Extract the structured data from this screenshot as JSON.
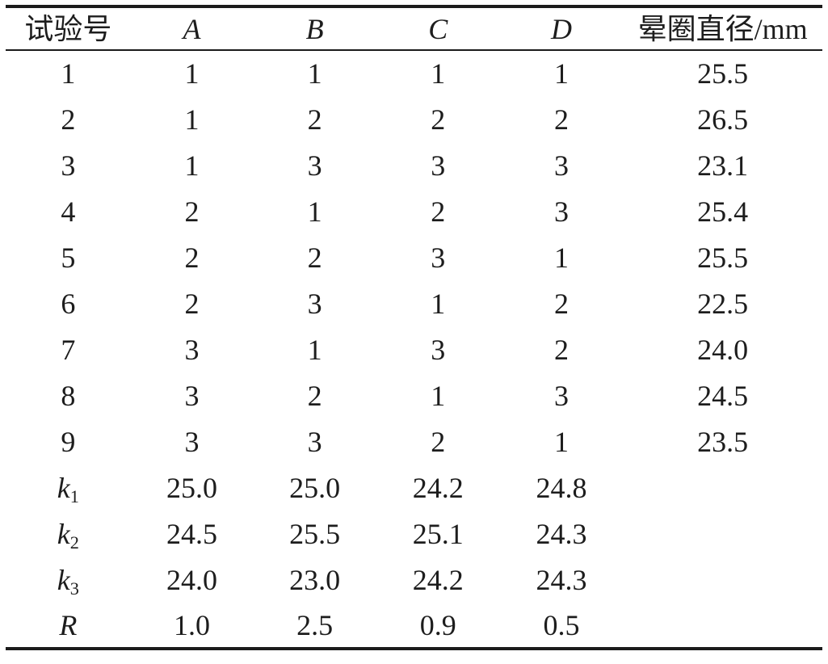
{
  "table": {
    "header": {
      "trial": "试验号",
      "factors": [
        "A",
        "B",
        "C",
        "D"
      ],
      "result": "晕圈直径/mm"
    },
    "data_rows": [
      {
        "label": "1",
        "A": "1",
        "B": "1",
        "C": "1",
        "D": "1",
        "result": "25.5"
      },
      {
        "label": "2",
        "A": "1",
        "B": "2",
        "C": "2",
        "D": "2",
        "result": "26.5"
      },
      {
        "label": "3",
        "A": "1",
        "B": "3",
        "C": "3",
        "D": "3",
        "result": "23.1"
      },
      {
        "label": "4",
        "A": "2",
        "B": "1",
        "C": "2",
        "D": "3",
        "result": "25.4"
      },
      {
        "label": "5",
        "A": "2",
        "B": "2",
        "C": "3",
        "D": "1",
        "result": "25.5"
      },
      {
        "label": "6",
        "A": "2",
        "B": "3",
        "C": "1",
        "D": "2",
        "result": "22.5"
      },
      {
        "label": "7",
        "A": "3",
        "B": "1",
        "C": "3",
        "D": "2",
        "result": "24.0"
      },
      {
        "label": "8",
        "A": "3",
        "B": "2",
        "C": "1",
        "D": "3",
        "result": "24.5"
      },
      {
        "label": "9",
        "A": "3",
        "B": "3",
        "C": "2",
        "D": "1",
        "result": "23.5"
      }
    ],
    "stat_rows": [
      {
        "base": "k",
        "sub": "1",
        "A": "25.0",
        "B": "25.0",
        "C": "24.2",
        "D": "24.8",
        "result": ""
      },
      {
        "base": "k",
        "sub": "2",
        "A": "24.5",
        "B": "25.5",
        "C": "25.1",
        "D": "24.3",
        "result": ""
      },
      {
        "base": "k",
        "sub": "3",
        "A": "24.0",
        "B": "23.0",
        "C": "24.2",
        "D": "24.3",
        "result": ""
      },
      {
        "base": "R",
        "sub": "",
        "A": "1.0",
        "B": "2.5",
        "C": "0.9",
        "D": "0.5",
        "result": ""
      }
    ],
    "line_color": "#1b1b1b",
    "text_color": "#1d1d1d"
  }
}
